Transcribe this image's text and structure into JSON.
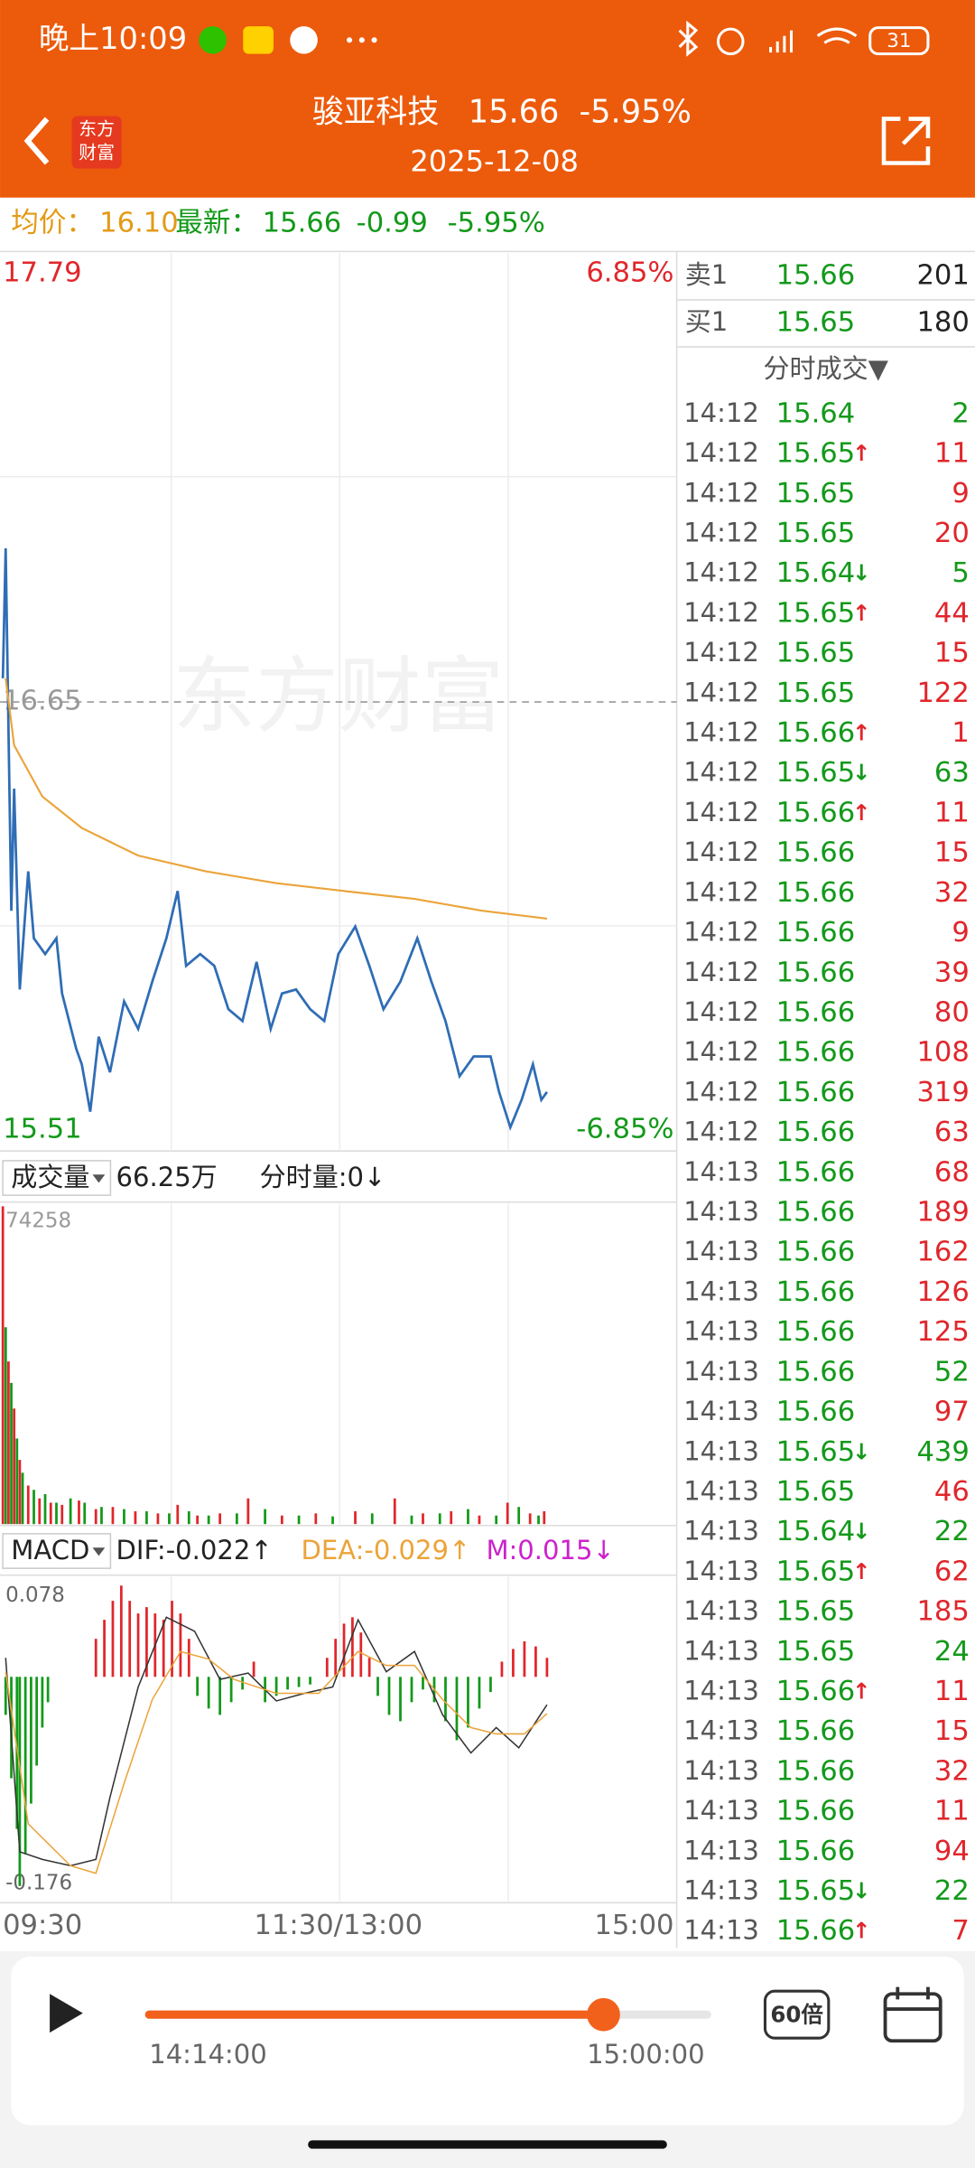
{
  "status_bar": {
    "time": "晚上10:09",
    "battery": 31
  },
  "header": {
    "logo": [
      "东方",
      "财富"
    ],
    "name": "骏亚科技",
    "price": 15.66,
    "change": "-5.95%",
    "date": "2025-12-08"
  },
  "quote": {
    "avg_label": "均价：",
    "avg": "16.10",
    "latest_label": "最新：",
    "latest": 15.66,
    "change": -0.99,
    "pct": "-5.95%"
  },
  "colors": {
    "up": "#e0262b",
    "down": "#13991a"
  },
  "chart_data": [
    {
      "type": "line",
      "watermark": "东方财富",
      "xlim": [
        0,
        240
      ],
      "ylim": [
        15.51,
        17.79
      ],
      "yticks": [
        17.79,
        15.51
      ],
      "y2lim": [
        -6.85,
        6.85
      ],
      "y2ticks": [
        {
          "value": 6.85,
          "label": "6.85%"
        },
        {
          "value": -6.85,
          "label": "-6.85%"
        }
      ],
      "prev_close": 16.65,
      "series": [
        {
          "color": "#2f6db5",
          "x": [
            1,
            2,
            4,
            5,
            7,
            10,
            12,
            16,
            20,
            22,
            27,
            29,
            32,
            35,
            39,
            44,
            49,
            54,
            59,
            63,
            66,
            71,
            76,
            81,
            86,
            91,
            96,
            100,
            105,
            110,
            115,
            120,
            126,
            131,
            136,
            142,
            148,
            153,
            158,
            163,
            168,
            174,
            177,
            181,
            185,
            189,
            192,
            194
          ],
          "values": [
            16.71,
            17.04,
            16.12,
            16.43,
            15.92,
            16.22,
            16.05,
            16.01,
            16.05,
            15.91,
            15.77,
            15.73,
            15.61,
            15.8,
            15.71,
            15.89,
            15.82,
            15.94,
            16.05,
            16.17,
            15.98,
            16.01,
            15.98,
            15.87,
            15.84,
            15.99,
            15.82,
            15.91,
            15.92,
            15.87,
            15.84,
            16.01,
            16.08,
            15.98,
            15.87,
            15.94,
            16.05,
            15.94,
            15.84,
            15.7,
            15.75,
            15.75,
            15.66,
            15.57,
            15.64,
            15.73,
            15.64,
            15.66
          ]
        },
        {
          "color": "#eba43a",
          "x": [
            2,
            5,
            15,
            29,
            49,
            73,
            98,
            122,
            147,
            171,
            194
          ],
          "values": [
            16.71,
            16.54,
            16.41,
            16.33,
            16.26,
            16.22,
            16.19,
            16.17,
            16.15,
            16.12,
            16.1
          ]
        }
      ]
    },
    {
      "type": "bar",
      "label": "成交量",
      "total": "66.25万",
      "sub": "分时量:0↓",
      "xlim": [
        0,
        240
      ],
      "ylim": [
        0,
        74258
      ],
      "yticks": [
        74258
      ],
      "series": [
        {
          "color": "#e0262b",
          "x": [
            1,
            3,
            5,
            7,
            10,
            14,
            18,
            22,
            28,
            34,
            40,
            48,
            56,
            63,
            70,
            78,
            88,
            100,
            112,
            126,
            140,
            150,
            160,
            170,
            180,
            188,
            193
          ],
          "values": [
            74258,
            38000,
            27000,
            15000,
            9000,
            6000,
            5000,
            4500,
            5500,
            3500,
            4000,
            3000,
            2500,
            4500,
            2000,
            2500,
            6000,
            2000,
            2500,
            3000,
            6000,
            2500,
            3000,
            2000,
            5000,
            2500,
            3000
          ]
        },
        {
          "color": "#13991a",
          "x": [
            2,
            4,
            6,
            8,
            12,
            16,
            20,
            25,
            30,
            36,
            44,
            52,
            60,
            67,
            74,
            84,
            94,
            106,
            118,
            132,
            146,
            156,
            166,
            176,
            184,
            191
          ],
          "values": [
            46000,
            33000,
            20000,
            12000,
            8000,
            7000,
            5000,
            6000,
            5000,
            4000,
            3500,
            3000,
            2500,
            3000,
            2000,
            2500,
            3500,
            2000,
            1800,
            2500,
            2000,
            2500,
            3500,
            2000,
            4000,
            2000
          ]
        }
      ]
    },
    {
      "type": "macd",
      "label": "MACD",
      "indicators": [
        {
          "text": "DIF:-0.022↑",
          "color": "#222222"
        },
        {
          "text": "DEA:-0.029↑",
          "color": "#eba43a"
        },
        {
          "text": "M:0.015↓",
          "color": "#cc22cc"
        }
      ],
      "xlim": [
        0,
        240
      ],
      "xticks": [
        {
          "value": 0,
          "label": "09:30"
        },
        {
          "value": 120,
          "label": "11:30/13:00"
        },
        {
          "value": 240,
          "label": "15:00"
        }
      ],
      "ylim": [
        -0.176,
        0.078
      ],
      "yticks": [
        0.078,
        -0.176
      ],
      "series": [
        {
          "type": "bar",
          "color": "#e0262b",
          "x": [
            34,
            37,
            40,
            43,
            46,
            49,
            52,
            55,
            58,
            61,
            64,
            67,
            90,
            116,
            119,
            122,
            125,
            128,
            131,
            178,
            182,
            186,
            190,
            194
          ],
          "values": [
            0.03,
            0.045,
            0.06,
            0.072,
            0.06,
            0.05,
            0.055,
            0.05,
            0.045,
            0.06,
            0.05,
            0.03,
            0.012,
            0.015,
            0.03,
            0.042,
            0.047,
            0.035,
            0.015,
            0.012,
            0.022,
            0.028,
            0.024,
            0.015
          ]
        },
        {
          "type": "bar",
          "color": "#13991a",
          "x": [
            2,
            4,
            6,
            7,
            9,
            11,
            13,
            15,
            17,
            70,
            74,
            78,
            82,
            86,
            94,
            98,
            102,
            106,
            110,
            134,
            138,
            142,
            146,
            150,
            154,
            158,
            162,
            166,
            170,
            174
          ],
          "values": [
            -0.03,
            -0.08,
            -0.12,
            -0.165,
            -0.14,
            -0.1,
            -0.07,
            -0.04,
            -0.02,
            -0.015,
            -0.025,
            -0.03,
            -0.02,
            -0.01,
            -0.02,
            -0.015,
            -0.01,
            -0.008,
            -0.006,
            -0.015,
            -0.03,
            -0.035,
            -0.02,
            -0.01,
            -0.02,
            -0.035,
            -0.05,
            -0.04,
            -0.025,
            -0.012
          ]
        },
        {
          "type": "line",
          "color": "#333333",
          "x": [
            2,
            7,
            15,
            25,
            34,
            39,
            49,
            59,
            69,
            78,
            88,
            98,
            108,
            118,
            127,
            137,
            147,
            157,
            167,
            176,
            184,
            194
          ],
          "values": [
            0.015,
            -0.138,
            -0.144,
            -0.149,
            -0.144,
            -0.095,
            -0.008,
            0.047,
            0.036,
            -0.002,
            0.003,
            -0.019,
            -0.013,
            -0.008,
            0.045,
            0.004,
            0.02,
            -0.03,
            -0.06,
            -0.04,
            -0.056,
            -0.022
          ]
        },
        {
          "type": "line",
          "color": "#eba43a",
          "x": [
            2,
            10,
            25,
            34,
            44,
            54,
            64,
            74,
            83,
            98,
            113,
            127,
            137,
            147,
            157,
            167,
            176,
            186,
            194
          ],
          "values": [
            0.004,
            -0.116,
            -0.149,
            -0.155,
            -0.084,
            -0.018,
            0.02,
            0.014,
            -0.002,
            -0.013,
            -0.013,
            0.02,
            0.009,
            0.009,
            -0.018,
            -0.04,
            -0.045,
            -0.045,
            -0.029
          ]
        }
      ]
    }
  ],
  "order_book": [
    {
      "label": "卖1",
      "price": 15.66,
      "volume": 201
    },
    {
      "label": "买1",
      "price": 15.65,
      "volume": 180
    }
  ],
  "trades": {
    "title": "分时成交▼",
    "rows": [
      {
        "time": "14:12",
        "price": 15.64,
        "volume": 2,
        "color": "#13991a"
      },
      {
        "time": "14:12",
        "price": 15.65,
        "arrow": "↑",
        "volume": 11,
        "color": "#e0262b"
      },
      {
        "time": "14:12",
        "price": 15.65,
        "volume": 9,
        "color": "#e0262b"
      },
      {
        "time": "14:12",
        "price": 15.65,
        "volume": 20,
        "color": "#e0262b"
      },
      {
        "time": "14:12",
        "price": 15.64,
        "arrow": "↓",
        "volume": 5,
        "color": "#13991a"
      },
      {
        "time": "14:12",
        "price": 15.65,
        "arrow": "↑",
        "volume": 44,
        "color": "#e0262b"
      },
      {
        "time": "14:12",
        "price": 15.65,
        "volume": 15,
        "color": "#e0262b"
      },
      {
        "time": "14:12",
        "price": 15.65,
        "volume": 122,
        "color": "#e0262b"
      },
      {
        "time": "14:12",
        "price": 15.66,
        "arrow": "↑",
        "volume": 1,
        "color": "#e0262b"
      },
      {
        "time": "14:12",
        "price": 15.65,
        "arrow": "↓",
        "volume": 63,
        "color": "#13991a"
      },
      {
        "time": "14:12",
        "price": 15.66,
        "arrow": "↑",
        "volume": 11,
        "color": "#e0262b"
      },
      {
        "time": "14:12",
        "price": 15.66,
        "volume": 15,
        "color": "#e0262b"
      },
      {
        "time": "14:12",
        "price": 15.66,
        "volume": 32,
        "color": "#e0262b"
      },
      {
        "time": "14:12",
        "price": 15.66,
        "volume": 9,
        "color": "#e0262b"
      },
      {
        "time": "14:12",
        "price": 15.66,
        "volume": 39,
        "color": "#e0262b"
      },
      {
        "time": "14:12",
        "price": 15.66,
        "volume": 80,
        "color": "#e0262b"
      },
      {
        "time": "14:12",
        "price": 15.66,
        "volume": 108,
        "color": "#e0262b"
      },
      {
        "time": "14:12",
        "price": 15.66,
        "volume": 319,
        "color": "#e0262b"
      },
      {
        "time": "14:12",
        "price": 15.66,
        "volume": 63,
        "color": "#e0262b"
      },
      {
        "time": "14:13",
        "price": 15.66,
        "volume": 68,
        "color": "#e0262b"
      },
      {
        "time": "14:13",
        "price": 15.66,
        "volume": 189,
        "color": "#e0262b"
      },
      {
        "time": "14:13",
        "price": 15.66,
        "volume": 162,
        "color": "#e0262b"
      },
      {
        "time": "14:13",
        "price": 15.66,
        "volume": 126,
        "color": "#e0262b"
      },
      {
        "time": "14:13",
        "price": 15.66,
        "volume": 125,
        "color": "#e0262b"
      },
      {
        "time": "14:13",
        "price": 15.66,
        "volume": 52,
        "color": "#13991a"
      },
      {
        "time": "14:13",
        "price": 15.66,
        "volume": 97,
        "color": "#e0262b"
      },
      {
        "time": "14:13",
        "price": 15.65,
        "arrow": "↓",
        "volume": 439,
        "color": "#13991a"
      },
      {
        "time": "14:13",
        "price": 15.65,
        "volume": 46,
        "color": "#e0262b"
      },
      {
        "time": "14:13",
        "price": 15.64,
        "arrow": "↓",
        "volume": 22,
        "color": "#13991a"
      },
      {
        "time": "14:13",
        "price": 15.65,
        "arrow": "↑",
        "volume": 62,
        "color": "#e0262b"
      },
      {
        "time": "14:13",
        "price": 15.65,
        "volume": 185,
        "color": "#e0262b"
      },
      {
        "time": "14:13",
        "price": 15.65,
        "volume": 24,
        "color": "#13991a"
      },
      {
        "time": "14:13",
        "price": 15.66,
        "arrow": "↑",
        "volume": 11,
        "color": "#e0262b"
      },
      {
        "time": "14:13",
        "price": 15.66,
        "volume": 15,
        "color": "#e0262b"
      },
      {
        "time": "14:13",
        "price": 15.66,
        "volume": 32,
        "color": "#e0262b"
      },
      {
        "time": "14:13",
        "price": 15.66,
        "volume": 11,
        "color": "#e0262b"
      },
      {
        "time": "14:13",
        "price": 15.66,
        "volume": 94,
        "color": "#e0262b"
      },
      {
        "time": "14:13",
        "price": 15.65,
        "arrow": "↓",
        "volume": 22,
        "color": "#13991a"
      },
      {
        "time": "14:13",
        "price": 15.66,
        "arrow": "↑",
        "volume": 7,
        "color": "#e0262b"
      }
    ]
  },
  "player": {
    "start": "14:14:00",
    "end": "15:00:00",
    "speed": "60倍"
  }
}
